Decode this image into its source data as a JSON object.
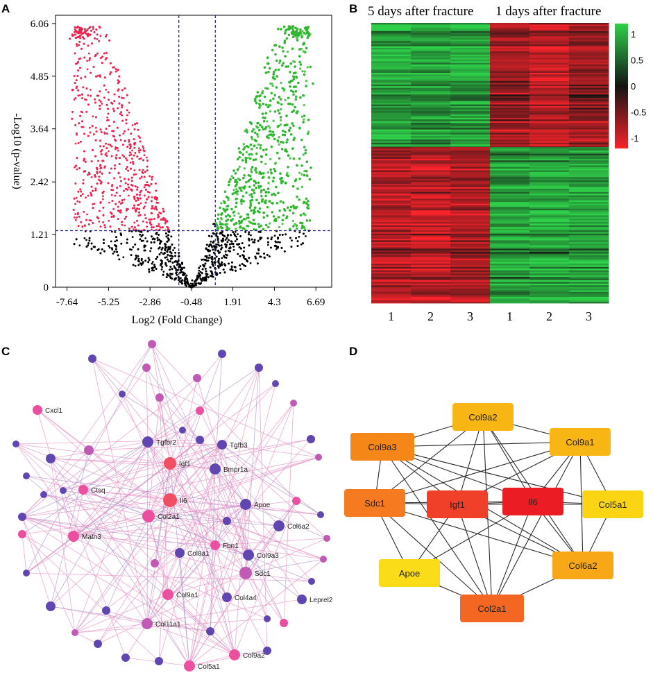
{
  "panels": {
    "a": "A",
    "b": "B",
    "c": "C",
    "d": "D"
  },
  "chart_data": [
    {
      "type": "scatter",
      "name": "volcano",
      "xlabel": "Log2 (Fold Change)",
      "ylabel": "-Log10 (p-value)",
      "x_ticks": [
        "-7.64",
        "-5.25",
        "-2.86",
        "-0.48",
        "1.91",
        "4.3",
        "6.69"
      ],
      "x_tick_values": [
        -7.64,
        -5.25,
        -2.86,
        -0.48,
        1.91,
        4.3,
        6.69
      ],
      "y_ticks": [
        "0",
        "1.21",
        "2.42",
        "3.64",
        "4.85",
        "6.06"
      ],
      "y_tick_values": [
        0,
        1.21,
        2.42,
        3.64,
        4.85,
        6.06
      ],
      "xlim": [
        -8.3,
        7.6
      ],
      "ylim": [
        0,
        6.25
      ],
      "fc_thresholds": [
        -1.2,
        0.9
      ],
      "p_threshold": 1.3,
      "series": [
        {
          "name": "down",
          "color": "#f0224e"
        },
        {
          "name": "not significant",
          "color": "#000000"
        },
        {
          "name": "up",
          "color": "#2fb72f"
        }
      ],
      "threshold_color": "#1b1b8a"
    },
    {
      "type": "heatmap",
      "name": "heatmap",
      "group_labels": [
        "5 days after fracture",
        "1 days after fracture"
      ],
      "column_labels": [
        "1",
        "2",
        "3",
        "1",
        "2",
        "3"
      ],
      "clusters": [
        {
          "name": "upper",
          "mean_values": [
            1.0,
            0.85,
            0.95,
            -0.75,
            -0.95,
            -0.7
          ]
        },
        {
          "name": "lower",
          "mean_values": [
            -0.85,
            -0.95,
            -0.8,
            0.9,
            1.0,
            0.95
          ]
        }
      ],
      "scale_ticks": [
        "1",
        "0.5",
        "0",
        "-0.5",
        "-1"
      ],
      "scale_values": [
        1,
        0.5,
        0,
        -0.5,
        -1
      ],
      "colors": {
        "high": "#2fd04a",
        "mid": "#141414",
        "low": "#f8232b"
      }
    },
    {
      "type": "network",
      "name": "ppi-network",
      "labeled_nodes": [
        "Cxcl1",
        "Tgfbr2",
        "Tgfb3",
        "Igf1",
        "Bmpr1a",
        "Ctsq",
        "Il6",
        "Apoe",
        "Col2a1",
        "Col6a2",
        "Matn3",
        "Fbn1",
        "Col9a3",
        "Col8a1",
        "Sdc1",
        "Col9a1",
        "Col4a4",
        "Leprel2",
        "Col11a1",
        "Col9a2",
        "Col5a1"
      ],
      "colors": {
        "edge_pink": "#e58fc4",
        "edge_purple": "#a994c8",
        "red": "#f24e63",
        "pink": "#ec4fa0",
        "magenta": "#c05ab5",
        "purple": "#6046b0"
      }
    },
    {
      "type": "network",
      "name": "hub-genes",
      "nodes": [
        "Col9a2",
        "Col9a3",
        "Col9a1",
        "Sdc1",
        "Igf1",
        "Il6",
        "Col5a1",
        "Apoe",
        "Col6a2",
        "Col2a1"
      ],
      "edges": [
        [
          "Col9a2",
          "Col9a3"
        ],
        [
          "Col9a2",
          "Col9a1"
        ],
        [
          "Col9a2",
          "Igf1"
        ],
        [
          "Col9a2",
          "Il6"
        ],
        [
          "Col9a2",
          "Col2a1"
        ],
        [
          "Col9a2",
          "Sdc1"
        ],
        [
          "Col9a2",
          "Col6a2"
        ],
        [
          "Col9a3",
          "Col9a1"
        ],
        [
          "Col9a3",
          "Sdc1"
        ],
        [
          "Col9a3",
          "Igf1"
        ],
        [
          "Col9a3",
          "Il6"
        ],
        [
          "Col9a3",
          "Col2a1"
        ],
        [
          "Col9a3",
          "Col5a1"
        ],
        [
          "Col9a3",
          "Col6a2"
        ],
        [
          "Col9a1",
          "Il6"
        ],
        [
          "Col9a1",
          "Igf1"
        ],
        [
          "Col9a1",
          "Col5a1"
        ],
        [
          "Col9a1",
          "Col2a1"
        ],
        [
          "Col9a1",
          "Sdc1"
        ],
        [
          "Col9a1",
          "Col6a2"
        ],
        [
          "Sdc1",
          "Igf1"
        ],
        [
          "Sdc1",
          "Il6"
        ],
        [
          "Sdc1",
          "Apoe"
        ],
        [
          "Sdc1",
          "Col2a1"
        ],
        [
          "Sdc1",
          "Col6a2"
        ],
        [
          "Igf1",
          "Il6"
        ],
        [
          "Igf1",
          "Apoe"
        ],
        [
          "Igf1",
          "Col2a1"
        ],
        [
          "Igf1",
          "Col6a2"
        ],
        [
          "Igf1",
          "Col5a1"
        ],
        [
          "Il6",
          "Col2a1"
        ],
        [
          "Il6",
          "Col6a2"
        ],
        [
          "Il6",
          "Col5a1"
        ],
        [
          "Il6",
          "Apoe"
        ],
        [
          "Col5a1",
          "Col6a2"
        ],
        [
          "Col6a2",
          "Col2a1"
        ],
        [
          "Apoe",
          "Col2a1"
        ]
      ],
      "node_colors": {
        "Col9a2": "#f8b615",
        "Col9a3": "#f58618",
        "Col9a1": "#f8b615",
        "Sdc1": "#f57a20",
        "Igf1": "#f0402a",
        "Il6": "#ec1c24",
        "Col5a1": "#fbd514",
        "Apoe": "#fbdc18",
        "Col6a2": "#f8a716",
        "Col2a1": "#f46722"
      }
    }
  ]
}
